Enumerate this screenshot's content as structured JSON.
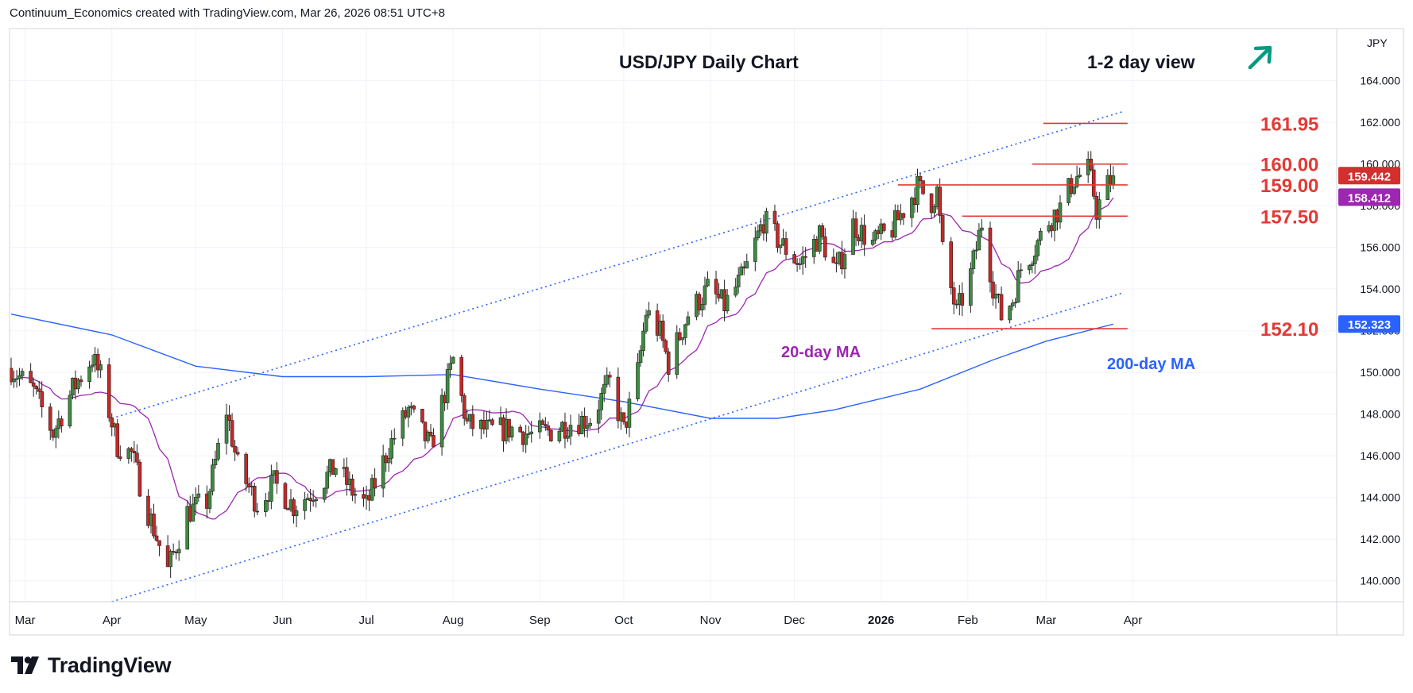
{
  "header": {
    "credit": "Continuum_Economics created with TradingView.com, Mar 26, 2026 08:51 UTC+8"
  },
  "footer": {
    "logo_text": "TradingView"
  },
  "chart_data": {
    "type": "candlestick",
    "title": "USD/JPY Daily Chart",
    "subtitle": "1-2 day view",
    "currency": "JPY",
    "view_direction": "up",
    "colors": {
      "up": "#26a69a",
      "down": "#ef5350",
      "bull_body": "#3d8b40",
      "bear_body": "#c62828",
      "ma20": "#9c27b0",
      "ma200": "#2962ff",
      "level": "#e53935",
      "arrow": "#089981"
    },
    "x_labels": [
      "Mar",
      "Apr",
      "May",
      "Jun",
      "Jul",
      "Aug",
      "Sep",
      "Oct",
      "Nov",
      "Dec",
      "2026",
      "Feb",
      "Mar",
      "Apr"
    ],
    "y_ticks": [
      "164.000",
      "162.000",
      "160.000",
      "158.000",
      "156.000",
      "154.000",
      "152.000",
      "150.000",
      "148.000",
      "146.000",
      "144.000",
      "142.000",
      "140.000"
    ],
    "ylim": [
      139,
      166.5
    ],
    "last_price": "159.442",
    "ma20_value": "158.412",
    "ma200_value": "152.323",
    "ma20_label": "20-day MA",
    "ma200_label": "200-day MA",
    "levels": [
      {
        "label": "161.95",
        "value": 161.95,
        "from": "2026-02-28",
        "to": "2026-03-25"
      },
      {
        "label": "160.00",
        "value": 160.0,
        "from": "2026-02-24",
        "to": "2026-03-25"
      },
      {
        "label": "159.00",
        "value": 159.0,
        "from": "2026-01-07",
        "to": "2026-03-25"
      },
      {
        "label": "157.50",
        "value": 157.5,
        "from": "2026-01-30",
        "to": "2026-03-25"
      },
      {
        "label": "152.10",
        "value": 152.1,
        "from": "2026-01-19",
        "to": "2026-03-25"
      }
    ],
    "channel": {
      "upper": [
        [
          "2025-04-01",
          147.8
        ],
        [
          "2026-03-28",
          162.5
        ]
      ],
      "lower": [
        [
          "2025-04-01",
          139.0
        ],
        [
          "2026-03-28",
          153.8
        ]
      ]
    },
    "price_anchors": [
      [
        "2025-02-24",
        150.2
      ],
      [
        "2025-03-04",
        149.1
      ],
      [
        "2025-03-11",
        147.1
      ],
      [
        "2025-03-18",
        149.2
      ],
      [
        "2025-03-25",
        150.7
      ],
      [
        "2025-03-28",
        149.8
      ],
      [
        "2025-04-03",
        146.5
      ],
      [
        "2025-04-08",
        146.1
      ],
      [
        "2025-04-14",
        143.3
      ],
      [
        "2025-04-21",
        140.5
      ],
      [
        "2025-04-28",
        143.3
      ],
      [
        "2025-05-05",
        143.8
      ],
      [
        "2025-05-12",
        148.2
      ],
      [
        "2025-05-16",
        145.5
      ],
      [
        "2025-05-23",
        143.7
      ],
      [
        "2025-05-29",
        144.7
      ],
      [
        "2025-06-05",
        143.6
      ],
      [
        "2025-06-13",
        144.4
      ],
      [
        "2025-06-20",
        145.5
      ],
      [
        "2025-06-26",
        144.3
      ],
      [
        "2025-07-01",
        143.6
      ],
      [
        "2025-07-09",
        146.4
      ],
      [
        "2025-07-16",
        148.2
      ],
      [
        "2025-07-24",
        146.4
      ],
      [
        "2025-08-01",
        150.6
      ],
      [
        "2025-08-06",
        147.5
      ],
      [
        "2025-08-14",
        147.2
      ],
      [
        "2025-08-22",
        147.3
      ],
      [
        "2025-08-29",
        147.0
      ],
      [
        "2025-09-05",
        147.2
      ],
      [
        "2025-09-12",
        147.6
      ],
      [
        "2025-09-19",
        147.8
      ],
      [
        "2025-09-26",
        149.5
      ],
      [
        "2025-10-01",
        147.2
      ],
      [
        "2025-10-06",
        150.0
      ],
      [
        "2025-10-09",
        152.9
      ],
      [
        "2025-10-14",
        151.9
      ],
      [
        "2025-10-17",
        150.4
      ],
      [
        "2025-10-24",
        152.8
      ],
      [
        "2025-10-31",
        154.0
      ],
      [
        "2025-11-06",
        153.2
      ],
      [
        "2025-11-13",
        154.7
      ],
      [
        "2025-11-20",
        157.3
      ],
      [
        "2025-11-26",
        156.2
      ],
      [
        "2025-12-03",
        155.2
      ],
      [
        "2025-12-10",
        156.6
      ],
      [
        "2025-12-16",
        154.8
      ],
      [
        "2025-12-22",
        157.1
      ],
      [
        "2025-12-29",
        156.2
      ],
      [
        "2026-01-05",
        156.9
      ],
      [
        "2026-01-09",
        157.8
      ],
      [
        "2026-01-14",
        158.9
      ],
      [
        "2026-01-19",
        158.2
      ],
      [
        "2026-01-21",
        158.7
      ],
      [
        "2026-01-23",
        155.8
      ],
      [
        "2026-01-26",
        154.0
      ],
      [
        "2026-01-28",
        152.8
      ],
      [
        "2026-02-02",
        154.7
      ],
      [
        "2026-02-06",
        157.2
      ],
      [
        "2026-02-10",
        154.2
      ],
      [
        "2026-02-13",
        152.7
      ],
      [
        "2026-02-17",
        153.5
      ],
      [
        "2026-02-20",
        155.0
      ],
      [
        "2026-02-25",
        156.0
      ],
      [
        "2026-03-02",
        157.3
      ],
      [
        "2026-03-06",
        157.9
      ],
      [
        "2026-03-11",
        159.3
      ],
      [
        "2026-03-16",
        159.7
      ],
      [
        "2026-03-18",
        158.6
      ],
      [
        "2026-03-19",
        157.8
      ],
      [
        "2026-03-23",
        159.0
      ],
      [
        "2026-03-25",
        159.44
      ]
    ],
    "ma200_points": [
      [
        "2025-02-24",
        152.8
      ],
      [
        "2025-04-01",
        151.8
      ],
      [
        "2025-05-01",
        150.3
      ],
      [
        "2025-06-01",
        149.8
      ],
      [
        "2025-07-01",
        149.8
      ],
      [
        "2025-08-01",
        149.9
      ],
      [
        "2025-09-01",
        149.2
      ],
      [
        "2025-10-01",
        148.6
      ],
      [
        "2025-11-01",
        147.8
      ],
      [
        "2025-11-25",
        147.8
      ],
      [
        "2025-12-15",
        148.2
      ],
      [
        "2026-01-15",
        149.2
      ],
      [
        "2026-02-10",
        150.6
      ],
      [
        "2026-03-01",
        151.5
      ],
      [
        "2026-03-25",
        152.32
      ]
    ]
  }
}
